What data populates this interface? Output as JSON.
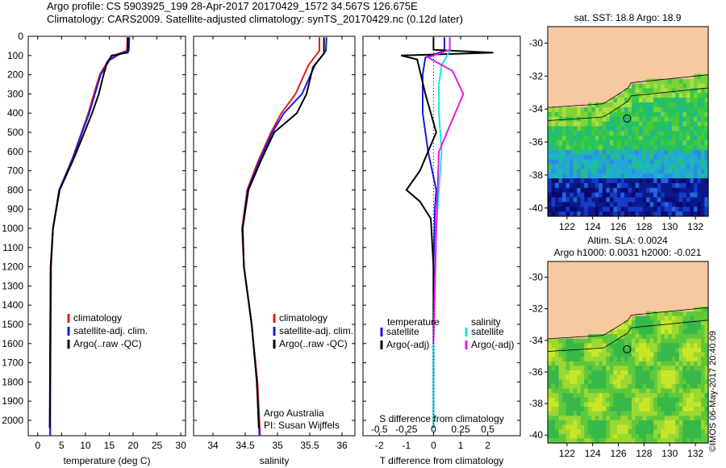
{
  "header": {
    "line1": "Argo profile: CS 5903925_199 28-Apr-2017 20170429_1572 34.567S 126.675E",
    "line2": "Climatology: CARS2009. Satellite-adjusted climatology: synTS_20170429.nc (0.12d later)"
  },
  "side_label": "©IMOS 06-May-2017 20:40:09",
  "colors": {
    "climatology": "#e0201c",
    "satellite": "#1a1ae6",
    "argo": "#000000",
    "sat_salinity": "#18e6e6",
    "argo_salinity": "#e61ae6",
    "land": "#f8c8a0"
  },
  "chart_data": [
    {
      "type": "line",
      "panel": "temperature",
      "xlabel": "temperature (deg C)",
      "xlim": [
        -2,
        31
      ],
      "xticks": [
        0,
        5,
        10,
        15,
        20,
        25,
        30
      ],
      "ylim": [
        2080,
        0
      ],
      "yticks": [
        0,
        100,
        200,
        300,
        400,
        500,
        600,
        700,
        800,
        900,
        1000,
        1100,
        1200,
        1300,
        1400,
        1500,
        1600,
        1700,
        1800,
        1900,
        2000
      ],
      "legend": [
        "climatology",
        "satellite-adj. clim.",
        "Argo(..raw -QC)"
      ],
      "series": [
        {
          "name": "climatology",
          "color": "#e0201c",
          "x": [
            18.8,
            18.7,
            16.5,
            14.8,
            13.0,
            11.8,
            10.6,
            9.2,
            7.2,
            4.5,
            3.2,
            2.8,
            2.7,
            2.6,
            2.6
          ],
          "y": [
            5,
            75,
            95,
            125,
            200,
            300,
            400,
            500,
            640,
            800,
            1000,
            1200,
            1600,
            2000,
            2080
          ]
        },
        {
          "name": "satellite-adj. clim.",
          "color": "#1a1ae6",
          "x": [
            19.2,
            19.1,
            17.0,
            15.0,
            13.2,
            12.0,
            10.8,
            9.3,
            7.3,
            4.5,
            3.2,
            2.7,
            2.6,
            2.6,
            2.6
          ],
          "y": [
            5,
            75,
            95,
            125,
            200,
            300,
            400,
            500,
            640,
            800,
            1000,
            1200,
            1600,
            2000,
            2080
          ]
        },
        {
          "name": "Argo(..raw -QC)",
          "color": "#000000",
          "x": [
            18.9,
            18.9,
            15.5,
            14.5,
            13.8,
            12.8,
            11.4,
            9.8,
            7.5,
            4.6,
            3.2,
            2.7,
            2.6,
            2.5
          ],
          "y": [
            5,
            85,
            100,
            140,
            200,
            300,
            400,
            500,
            640,
            800,
            1000,
            1200,
            1600,
            2040
          ]
        }
      ]
    },
    {
      "type": "line",
      "panel": "salinity",
      "xlabel": "salinity",
      "xlim": [
        33.7,
        36.2
      ],
      "xticks": [
        34,
        34.5,
        35,
        35.5,
        36
      ],
      "xtick_labels": [
        "34",
        "34.5",
        "35",
        "35.5",
        "36"
      ],
      "legend": [
        "climatology",
        "satellite-adj. clim.",
        "Argo(..raw -QC)"
      ],
      "annotation": [
        "Argo Australia",
        "PI: Susan Wijffels"
      ],
      "series": [
        {
          "name": "climatology",
          "color": "#e0201c",
          "x": [
            35.65,
            35.65,
            35.48,
            35.28,
            35.06,
            34.9,
            34.7,
            34.53,
            34.45,
            34.48,
            34.6,
            34.69,
            34.72,
            34.73
          ],
          "y": [
            5,
            75,
            150,
            300,
            400,
            500,
            650,
            800,
            1000,
            1200,
            1500,
            1800,
            2000,
            2080
          ]
        },
        {
          "name": "satellite-adj. clim.",
          "color": "#1a1ae6",
          "x": [
            35.76,
            35.75,
            35.58,
            35.38,
            35.1,
            34.92,
            34.72,
            34.54,
            34.46,
            34.48,
            34.6,
            34.68,
            34.71,
            34.72
          ],
          "y": [
            5,
            75,
            150,
            300,
            400,
            500,
            650,
            800,
            1000,
            1200,
            1500,
            1800,
            2000,
            2080
          ]
        },
        {
          "name": "Argo(..raw -QC)",
          "color": "#000000",
          "x": [
            35.72,
            35.72,
            35.55,
            35.45,
            35.3,
            34.95,
            34.74,
            34.55,
            34.46,
            34.48,
            34.6,
            34.68,
            34.71
          ],
          "y": [
            5,
            90,
            160,
            300,
            400,
            500,
            650,
            800,
            1000,
            1200,
            1500,
            1800,
            2040
          ]
        }
      ]
    },
    {
      "type": "line",
      "panel": "difference",
      "xlabel": "T difference from climatology",
      "xlabel_top": "S difference from climatology",
      "xlim": [
        -2.6,
        3.2
      ],
      "xticks": [
        -2,
        -1,
        0,
        1,
        2
      ],
      "s_ticks": [
        "-0.5",
        "-0.25",
        "0",
        "0.25",
        "0.5"
      ],
      "legend_headers": [
        "temperature",
        "salinity"
      ],
      "legend": [
        "satellite",
        "Argo(-adj)",
        "satellite",
        "Argo(-adj)"
      ],
      "series": [
        {
          "name": "satellite",
          "color": "#1a1ae6",
          "x": [
            0.4,
            0.4,
            -0.3,
            -0.4,
            -0.4,
            -0.2,
            0.1,
            0.05,
            0.0,
            0.0,
            0.0
          ],
          "y": [
            5,
            75,
            110,
            200,
            400,
            600,
            800,
            900,
            1200,
            1600,
            2040
          ]
        },
        {
          "name": "Argo(-adj)",
          "color": "#000000",
          "x": [
            0.0,
            0.0,
            2.2,
            -1.2,
            -0.6,
            -0.3,
            0.1,
            -0.2,
            -0.5,
            -1.0,
            -0.5,
            -0.1,
            0.0,
            0.0,
            0.0
          ],
          "y": [
            5,
            70,
            85,
            100,
            120,
            300,
            500,
            600,
            700,
            800,
            860,
            950,
            1200,
            1600,
            2040
          ]
        },
        {
          "name": "satellite",
          "color": "#18e6e6",
          "x": [
            0.6,
            0.6,
            0.3,
            0.2,
            0.2,
            0.3,
            0.2,
            0.1,
            0.0,
            0.0
          ],
          "y": [
            5,
            75,
            150,
            250,
            400,
            600,
            800,
            1000,
            1600,
            2040
          ]
        },
        {
          "name": "Argo(-adj)",
          "color": "#e61ae6",
          "x": [
            0.6,
            0.6,
            -0.2,
            0.7,
            1.1,
            0.8,
            0.2,
            0.1,
            0.0
          ],
          "y": [
            5,
            70,
            110,
            180,
            300,
            400,
            600,
            1000,
            1600
          ]
        }
      ]
    },
    {
      "type": "heatmap",
      "panel": "sst-map",
      "title": "sat. SST: 18.8 Argo: 18.9",
      "xticks": [
        "122",
        "124",
        "126",
        "128",
        "130",
        "132"
      ],
      "yticks": [
        "-30",
        "-32",
        "-34",
        "-36",
        "-38",
        "-40"
      ],
      "xlim": [
        120.5,
        133
      ],
      "ylim": [
        -40.5,
        -29
      ],
      "argo_location": [
        126.675,
        -34.567
      ]
    },
    {
      "type": "heatmap",
      "panel": "sla-map",
      "title": [
        "Altim. SLA: 0.0024",
        "Argo h1000: 0.0031 h2000: -0.021"
      ],
      "xticks": [
        "122",
        "124",
        "126",
        "128",
        "130",
        "132"
      ],
      "yticks": [
        "-30",
        "-32",
        "-34",
        "-36",
        "-38",
        "-40"
      ],
      "xlim": [
        120.5,
        133
      ],
      "ylim": [
        -40.5,
        -29
      ],
      "argo_location": [
        126.675,
        -34.567
      ]
    }
  ]
}
